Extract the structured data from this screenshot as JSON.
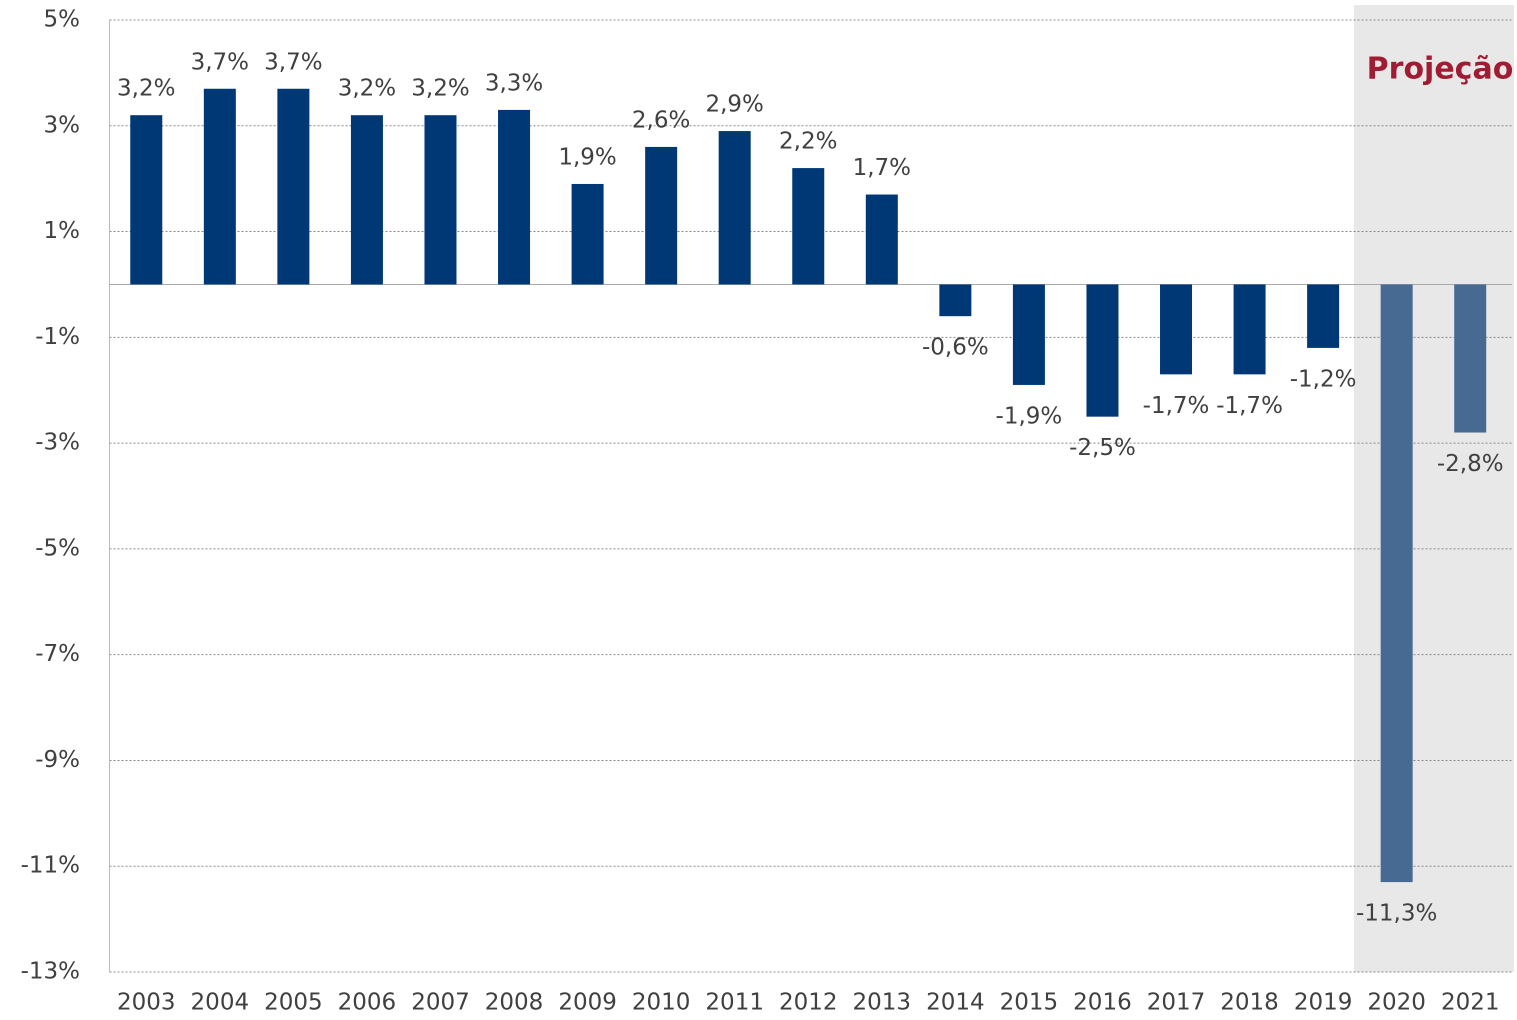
{
  "chart_data": {
    "type": "bar",
    "categories": [
      "2003",
      "2004",
      "2005",
      "2006",
      "2007",
      "2008",
      "2009",
      "2010",
      "2011",
      "2012",
      "2013",
      "2014",
      "2015",
      "2016",
      "2017",
      "2018",
      "2019",
      "2020",
      "2021"
    ],
    "values": [
      3.2,
      3.7,
      3.7,
      3.2,
      3.2,
      3.3,
      1.9,
      2.6,
      2.9,
      2.2,
      1.7,
      -0.6,
      -1.9,
      -2.5,
      -1.7,
      -1.7,
      -1.2,
      -11.3,
      -2.8
    ],
    "value_labels": [
      "3,2%",
      "3,7%",
      "3,7%",
      "3,2%",
      "3,2%",
      "3,3%",
      "1,9%",
      "2,6%",
      "2,9%",
      "2,2%",
      "1,7%",
      "-0,6%",
      "-1,9%",
      "-2,5%",
      "-1,7%",
      "-1,7%",
      "-1,2%",
      "-11,3%",
      "-2,8%"
    ],
    "colors": [
      "#003876",
      "#003876",
      "#003876",
      "#003876",
      "#003876",
      "#003876",
      "#003876",
      "#003876",
      "#003876",
      "#003876",
      "#003876",
      "#003876",
      "#003876",
      "#003876",
      "#003876",
      "#003876",
      "#003876",
      "#476a93",
      "#476a93"
    ],
    "ylim": [
      -13,
      5
    ],
    "yticks": [
      {
        "value": 5,
        "label": "5%"
      },
      {
        "value": 3,
        "label": "3%"
      },
      {
        "value": 1,
        "label": "1%"
      },
      {
        "value": -1,
        "label": "-1%"
      },
      {
        "value": -3,
        "label": "-3%"
      },
      {
        "value": -5,
        "label": "-5%"
      },
      {
        "value": -7,
        "label": "-7%"
      },
      {
        "value": -9,
        "label": "-9%"
      },
      {
        "value": -11,
        "label": "-11%"
      },
      {
        "value": -13,
        "label": "-13%"
      }
    ],
    "grid": true,
    "projection": {
      "label": "Projeção",
      "color": "#a01c33",
      "from": "2020",
      "shade": "#e8e8e8"
    }
  }
}
